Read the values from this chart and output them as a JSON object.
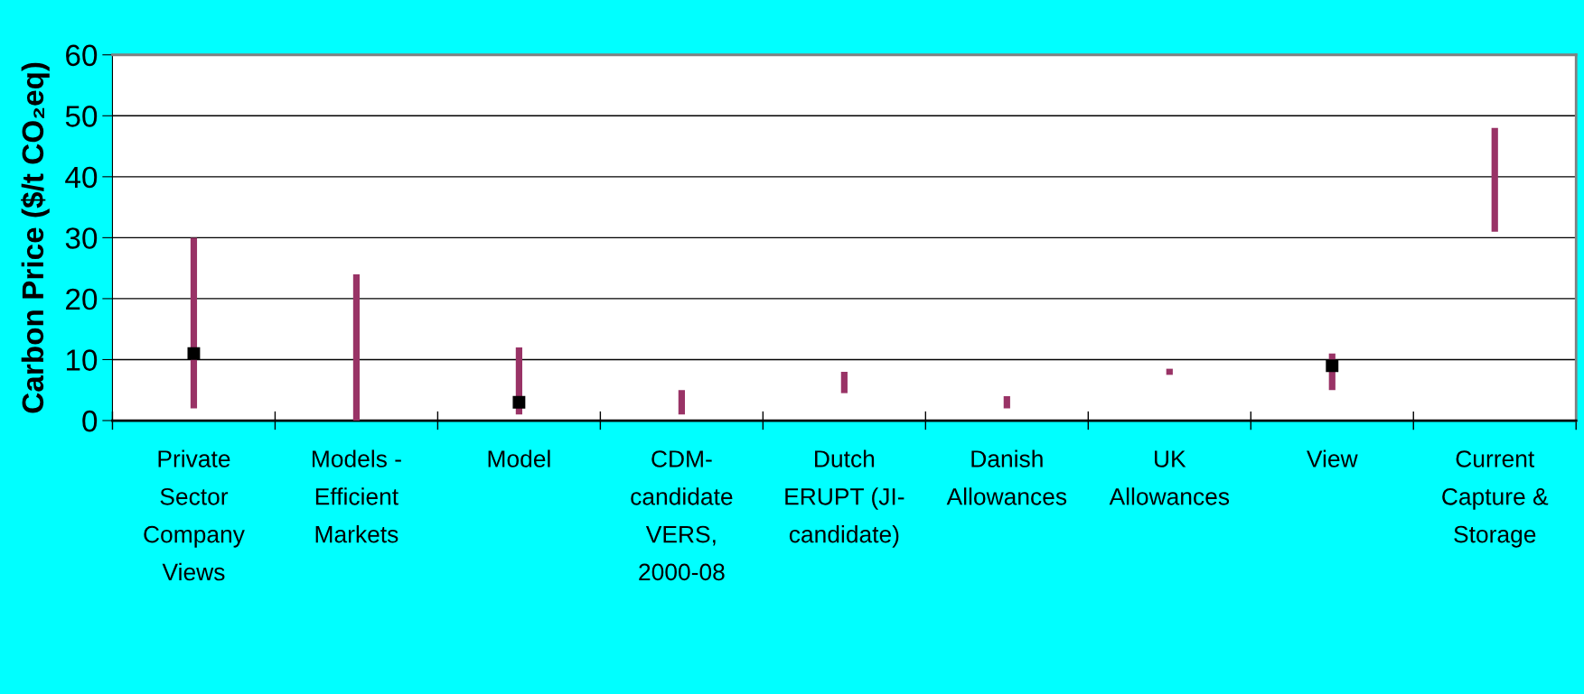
{
  "chart_data": {
    "type": "bar",
    "ylabel": "Carbon Price ($/t CO₂eq)",
    "categories": [
      "Private\nSector\nCompany\nViews",
      "Models -\nEfficient\nMarkets",
      "Model",
      "CDM-\ncandidate\nVERS,\n2000-08",
      "Dutch\nERUPT (JI-\ncandidate)",
      "Danish\nAllowances",
      "UK\nAllowances",
      "View",
      "Current\nCapture &\nStorage"
    ],
    "series": [
      {
        "color": "#993366",
        "base": [
          2,
          0,
          1,
          1,
          4.5,
          2,
          7.5,
          5,
          31
        ],
        "values": [
          28,
          24,
          11,
          4,
          3.5,
          2,
          1,
          6,
          17
        ]
      },
      {
        "type": "scatter",
        "color": "#000000",
        "marker": "square",
        "values": [
          11,
          null,
          3,
          null,
          null,
          null,
          null,
          9,
          null
        ]
      }
    ],
    "ylim": [
      0,
      60
    ],
    "yticks": [
      0,
      10,
      20,
      30,
      40,
      50,
      60
    ],
    "grid": "y"
  }
}
